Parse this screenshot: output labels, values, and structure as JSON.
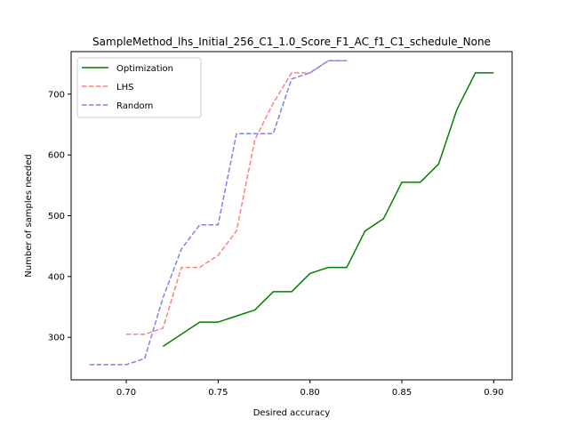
{
  "chart_data": {
    "type": "line",
    "title": "SampleMethod_lhs_Initial_256_C1_1.0_Score_F1_AC_f1_C1_schedule_None",
    "xlabel": "Desired accuracy",
    "ylabel": "Number of samples needed",
    "xlim": [
      0.67,
      0.91
    ],
    "ylim": [
      230,
      770
    ],
    "xticks": [
      0.7,
      0.75,
      0.8,
      0.85,
      0.9
    ],
    "xtick_labels": [
      "0.70",
      "0.75",
      "0.80",
      "0.85",
      "0.90"
    ],
    "yticks": [
      300,
      400,
      500,
      600,
      700
    ],
    "ytick_labels": [
      "300",
      "400",
      "500",
      "600",
      "700"
    ],
    "grid": false,
    "legend_position": "upper-left",
    "series": [
      {
        "name": "Optimization",
        "color": "#008000",
        "style": "solid",
        "x": [
          0.72,
          0.73,
          0.74,
          0.75,
          0.76,
          0.77,
          0.78,
          0.79,
          0.8,
          0.81,
          0.82,
          0.83,
          0.84,
          0.85,
          0.86,
          0.87,
          0.88,
          0.89,
          0.9
        ],
        "y": [
          285,
          305,
          325,
          325,
          335,
          345,
          375,
          375,
          405,
          415,
          415,
          475,
          495,
          555,
          555,
          585,
          675,
          735,
          735
        ]
      },
      {
        "name": "LHS",
        "color": "#ff8080",
        "style": "dashed",
        "x": [
          0.7,
          0.71,
          0.72,
          0.73,
          0.74,
          0.75,
          0.76,
          0.77,
          0.78,
          0.79,
          0.8,
          0.81,
          0.82
        ],
        "y": [
          305,
          305,
          315,
          415,
          415,
          435,
          475,
          625,
          685,
          735,
          735,
          755,
          755
        ]
      },
      {
        "name": "Random",
        "color": "#8080f0",
        "style": "dashed",
        "x": [
          0.68,
          0.69,
          0.7,
          0.71,
          0.72,
          0.73,
          0.74,
          0.75,
          0.76,
          0.77,
          0.78,
          0.79,
          0.8,
          0.81,
          0.82
        ],
        "y": [
          255,
          255,
          255,
          265,
          365,
          445,
          485,
          485,
          635,
          635,
          635,
          725,
          735,
          755,
          755
        ]
      }
    ]
  }
}
